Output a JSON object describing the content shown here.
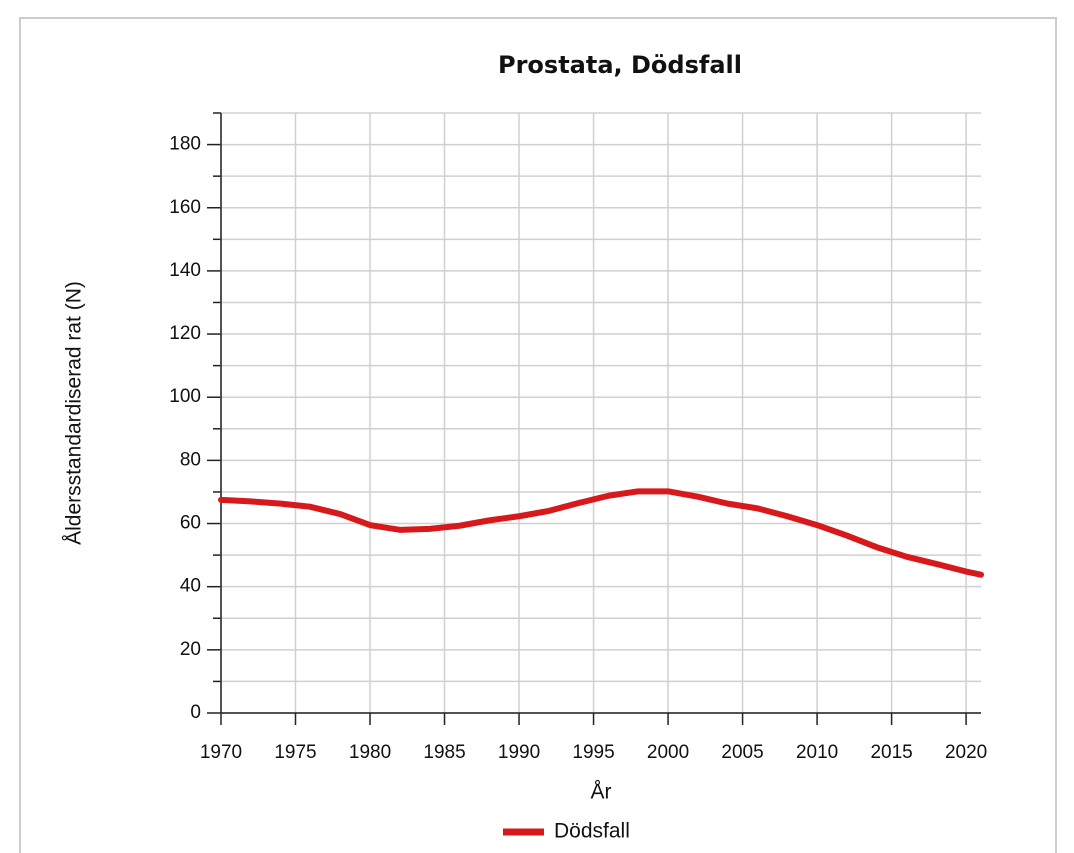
{
  "chart_data": {
    "type": "line",
    "title": "Prostata, Dödsfall",
    "xlabel": "År",
    "ylabel": "Åldersstandardiserad rat (N)",
    "x": [
      1970,
      1972,
      1974,
      1976,
      1978,
      1980,
      1982,
      1984,
      1986,
      1988,
      1990,
      1992,
      1994,
      1996,
      1998,
      2000,
      2002,
      2004,
      2006,
      2008,
      2010,
      2012,
      2014,
      2016,
      2018,
      2020,
      2021
    ],
    "series": [
      {
        "name": "Dödsfall",
        "color": "#d7191c",
        "values": [
          67.5,
          67,
          66.3,
          65.3,
          63,
          59.5,
          58,
          58.3,
          59.3,
          61,
          62.3,
          64,
          66.5,
          68.8,
          70.2,
          70.2,
          68.5,
          66.3,
          64.8,
          62.3,
          59.5,
          56.2,
          52.5,
          49.5,
          47.2,
          44.8,
          43.8
        ]
      }
    ],
    "xlim": [
      1970,
      2021
    ],
    "xticks": [
      1970,
      1975,
      1980,
      1985,
      1990,
      1995,
      2000,
      2005,
      2010,
      2015,
      2020
    ],
    "ylim": [
      0,
      190
    ],
    "yticks": [
      0,
      20,
      40,
      60,
      80,
      100,
      120,
      140,
      160,
      180
    ],
    "yticks_minor": [
      10,
      30,
      50,
      70,
      90,
      110,
      130,
      150,
      170,
      190
    ],
    "grid": true,
    "legend": "bottom"
  }
}
